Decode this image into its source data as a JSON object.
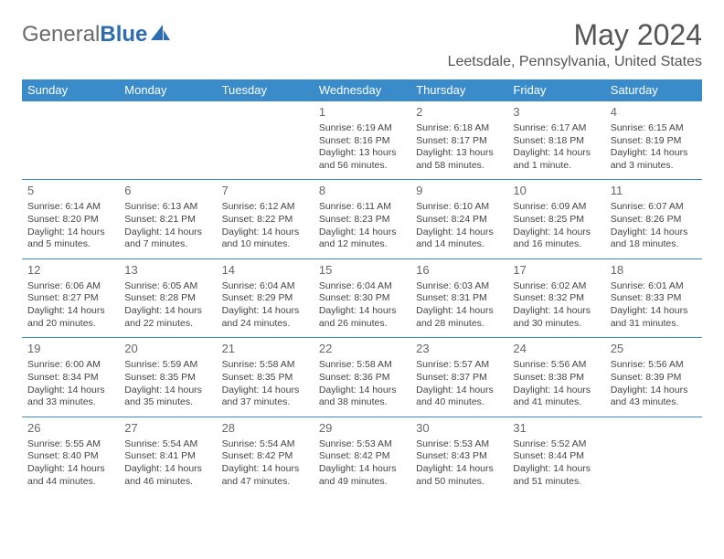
{
  "brand": {
    "part1": "General",
    "part2": "Blue"
  },
  "title": "May 2024",
  "location": "Leetsdale, Pennsylvania, United States",
  "colors": {
    "header_bg": "#3a8bc9",
    "header_text": "#ffffff",
    "border": "#3a8bc9",
    "title_color": "#555555",
    "body_text": "#444444"
  },
  "weekdays": [
    "Sunday",
    "Monday",
    "Tuesday",
    "Wednesday",
    "Thursday",
    "Friday",
    "Saturday"
  ],
  "days": [
    {
      "num": "",
      "sunrise": "",
      "sunset": "",
      "daylight": ""
    },
    {
      "num": "",
      "sunrise": "",
      "sunset": "",
      "daylight": ""
    },
    {
      "num": "",
      "sunrise": "",
      "sunset": "",
      "daylight": ""
    },
    {
      "num": "1",
      "sunrise": "Sunrise: 6:19 AM",
      "sunset": "Sunset: 8:16 PM",
      "daylight": "Daylight: 13 hours and 56 minutes."
    },
    {
      "num": "2",
      "sunrise": "Sunrise: 6:18 AM",
      "sunset": "Sunset: 8:17 PM",
      "daylight": "Daylight: 13 hours and 58 minutes."
    },
    {
      "num": "3",
      "sunrise": "Sunrise: 6:17 AM",
      "sunset": "Sunset: 8:18 PM",
      "daylight": "Daylight: 14 hours and 1 minute."
    },
    {
      "num": "4",
      "sunrise": "Sunrise: 6:15 AM",
      "sunset": "Sunset: 8:19 PM",
      "daylight": "Daylight: 14 hours and 3 minutes."
    },
    {
      "num": "5",
      "sunrise": "Sunrise: 6:14 AM",
      "sunset": "Sunset: 8:20 PM",
      "daylight": "Daylight: 14 hours and 5 minutes."
    },
    {
      "num": "6",
      "sunrise": "Sunrise: 6:13 AM",
      "sunset": "Sunset: 8:21 PM",
      "daylight": "Daylight: 14 hours and 7 minutes."
    },
    {
      "num": "7",
      "sunrise": "Sunrise: 6:12 AM",
      "sunset": "Sunset: 8:22 PM",
      "daylight": "Daylight: 14 hours and 10 minutes."
    },
    {
      "num": "8",
      "sunrise": "Sunrise: 6:11 AM",
      "sunset": "Sunset: 8:23 PM",
      "daylight": "Daylight: 14 hours and 12 minutes."
    },
    {
      "num": "9",
      "sunrise": "Sunrise: 6:10 AM",
      "sunset": "Sunset: 8:24 PM",
      "daylight": "Daylight: 14 hours and 14 minutes."
    },
    {
      "num": "10",
      "sunrise": "Sunrise: 6:09 AM",
      "sunset": "Sunset: 8:25 PM",
      "daylight": "Daylight: 14 hours and 16 minutes."
    },
    {
      "num": "11",
      "sunrise": "Sunrise: 6:07 AM",
      "sunset": "Sunset: 8:26 PM",
      "daylight": "Daylight: 14 hours and 18 minutes."
    },
    {
      "num": "12",
      "sunrise": "Sunrise: 6:06 AM",
      "sunset": "Sunset: 8:27 PM",
      "daylight": "Daylight: 14 hours and 20 minutes."
    },
    {
      "num": "13",
      "sunrise": "Sunrise: 6:05 AM",
      "sunset": "Sunset: 8:28 PM",
      "daylight": "Daylight: 14 hours and 22 minutes."
    },
    {
      "num": "14",
      "sunrise": "Sunrise: 6:04 AM",
      "sunset": "Sunset: 8:29 PM",
      "daylight": "Daylight: 14 hours and 24 minutes."
    },
    {
      "num": "15",
      "sunrise": "Sunrise: 6:04 AM",
      "sunset": "Sunset: 8:30 PM",
      "daylight": "Daylight: 14 hours and 26 minutes."
    },
    {
      "num": "16",
      "sunrise": "Sunrise: 6:03 AM",
      "sunset": "Sunset: 8:31 PM",
      "daylight": "Daylight: 14 hours and 28 minutes."
    },
    {
      "num": "17",
      "sunrise": "Sunrise: 6:02 AM",
      "sunset": "Sunset: 8:32 PM",
      "daylight": "Daylight: 14 hours and 30 minutes."
    },
    {
      "num": "18",
      "sunrise": "Sunrise: 6:01 AM",
      "sunset": "Sunset: 8:33 PM",
      "daylight": "Daylight: 14 hours and 31 minutes."
    },
    {
      "num": "19",
      "sunrise": "Sunrise: 6:00 AM",
      "sunset": "Sunset: 8:34 PM",
      "daylight": "Daylight: 14 hours and 33 minutes."
    },
    {
      "num": "20",
      "sunrise": "Sunrise: 5:59 AM",
      "sunset": "Sunset: 8:35 PM",
      "daylight": "Daylight: 14 hours and 35 minutes."
    },
    {
      "num": "21",
      "sunrise": "Sunrise: 5:58 AM",
      "sunset": "Sunset: 8:35 PM",
      "daylight": "Daylight: 14 hours and 37 minutes."
    },
    {
      "num": "22",
      "sunrise": "Sunrise: 5:58 AM",
      "sunset": "Sunset: 8:36 PM",
      "daylight": "Daylight: 14 hours and 38 minutes."
    },
    {
      "num": "23",
      "sunrise": "Sunrise: 5:57 AM",
      "sunset": "Sunset: 8:37 PM",
      "daylight": "Daylight: 14 hours and 40 minutes."
    },
    {
      "num": "24",
      "sunrise": "Sunrise: 5:56 AM",
      "sunset": "Sunset: 8:38 PM",
      "daylight": "Daylight: 14 hours and 41 minutes."
    },
    {
      "num": "25",
      "sunrise": "Sunrise: 5:56 AM",
      "sunset": "Sunset: 8:39 PM",
      "daylight": "Daylight: 14 hours and 43 minutes."
    },
    {
      "num": "26",
      "sunrise": "Sunrise: 5:55 AM",
      "sunset": "Sunset: 8:40 PM",
      "daylight": "Daylight: 14 hours and 44 minutes."
    },
    {
      "num": "27",
      "sunrise": "Sunrise: 5:54 AM",
      "sunset": "Sunset: 8:41 PM",
      "daylight": "Daylight: 14 hours and 46 minutes."
    },
    {
      "num": "28",
      "sunrise": "Sunrise: 5:54 AM",
      "sunset": "Sunset: 8:42 PM",
      "daylight": "Daylight: 14 hours and 47 minutes."
    },
    {
      "num": "29",
      "sunrise": "Sunrise: 5:53 AM",
      "sunset": "Sunset: 8:42 PM",
      "daylight": "Daylight: 14 hours and 49 minutes."
    },
    {
      "num": "30",
      "sunrise": "Sunrise: 5:53 AM",
      "sunset": "Sunset: 8:43 PM",
      "daylight": "Daylight: 14 hours and 50 minutes."
    },
    {
      "num": "31",
      "sunrise": "Sunrise: 5:52 AM",
      "sunset": "Sunset: 8:44 PM",
      "daylight": "Daylight: 14 hours and 51 minutes."
    },
    {
      "num": "",
      "sunrise": "",
      "sunset": "",
      "daylight": ""
    }
  ]
}
